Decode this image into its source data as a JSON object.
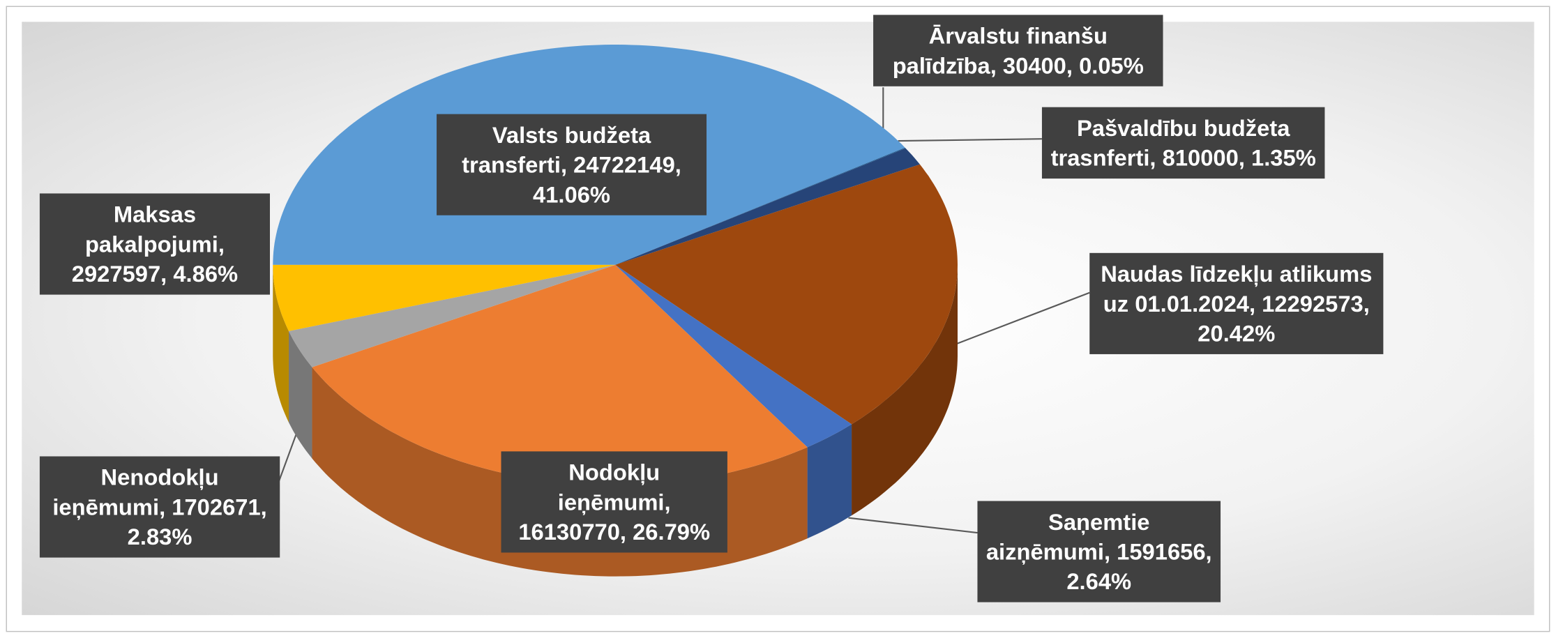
{
  "chart_data": {
    "type": "pie3d",
    "values": [
      24722149,
      30400,
      810000,
      12292573,
      1591656,
      16130770,
      1702671,
      2927597
    ],
    "value_labels": [
      "Valsts budžeta transferti, 24722149, 41.06%",
      "Ārvalstu finanšu palīdzība, 30400, 0.05%",
      "Pašvaldību budžeta trasnferti, 810000, 1.35%",
      "Naudas līdzekļu atlikums uz 01.01.2024, 12292573, 20.42%",
      "Saņemtie aizņēmumi, 1591656, 2.64%",
      "Nodokļu ieņēmumi, 16130770, 26.79%",
      "Nenodokļu ieņēmumi, 1702671, 2.83%",
      "Maksas pakalpojumi, 2927597, 4.86%"
    ],
    "colors": [
      "#5b9bd5",
      "#255e91",
      "#264478",
      "#9e480e",
      "#4472c4",
      "#ed7d31",
      "#a5a5a5",
      "#ffc000"
    ]
  }
}
